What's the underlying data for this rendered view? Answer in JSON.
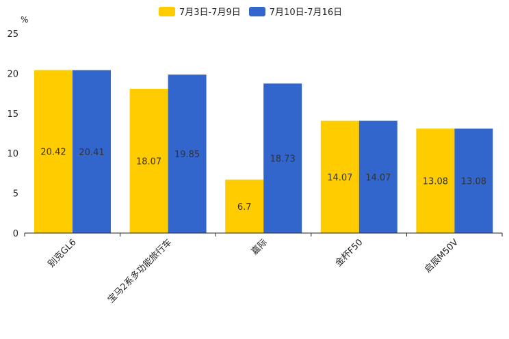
{
  "chart_data": {
    "type": "bar",
    "ylabel": "%",
    "ylim": [
      0,
      25
    ],
    "yticks": [
      0,
      5,
      10,
      15,
      20,
      25
    ],
    "categories": [
      "别克GL6",
      "宝马2系多功能旅行车",
      "嘉际",
      "金杯F50",
      "启辰M50V"
    ],
    "series": [
      {
        "name": "7月3日-7月9日",
        "color": "#FFCC00",
        "values": [
          20.42,
          18.07,
          6.7,
          14.07,
          13.08
        ]
      },
      {
        "name": "7月10日-7月16日",
        "color": "#3366CC",
        "values": [
          20.41,
          19.85,
          18.73,
          14.07,
          13.08
        ]
      }
    ],
    "legend": "top-center"
  }
}
